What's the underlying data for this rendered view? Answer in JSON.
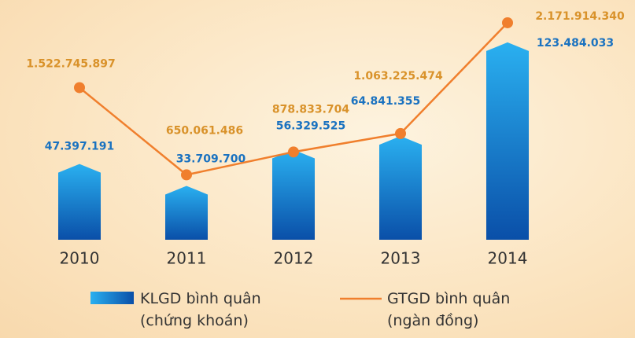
{
  "chart_data": {
    "type": "bar_line",
    "categories": [
      "2010",
      "2011",
      "2012",
      "2013",
      "2014"
    ],
    "series": [
      {
        "name": "KLGD bình quân (chứng khoán)",
        "type": "bar",
        "color": "#1a7fd0",
        "values": [
          47397191,
          33709700,
          56329525,
          64841355,
          123484033
        ],
        "value_labels": [
          "47.397.191",
          "33.709.700",
          "56.329.525",
          "64.841.355",
          "123.484.033"
        ]
      },
      {
        "name": "GTGD bình quân (ngàn đồng)",
        "type": "line",
        "axis": "y2",
        "color": "#f07f2d",
        "values": [
          1522745897,
          650061486,
          878833704,
          1063225474,
          2171914340
        ],
        "value_labels": [
          "1.522.745.897",
          "650.061.486",
          "878.833.704",
          "1.063.225.474",
          "2.171.914.340"
        ]
      }
    ],
    "ylim": [
      0,
      150000000
    ],
    "y2lim": [
      0,
      2400000000
    ]
  }
}
